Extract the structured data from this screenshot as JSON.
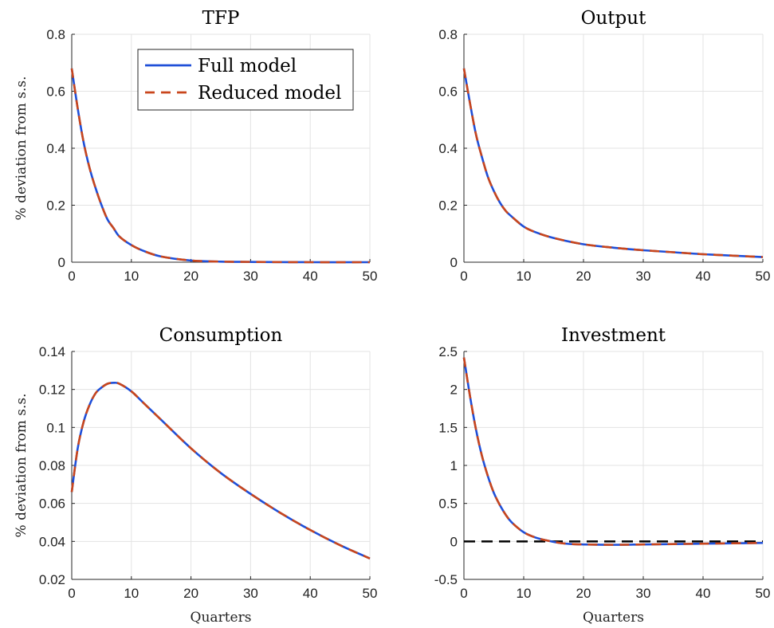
{
  "legend": {
    "items": [
      {
        "label": "Full model",
        "color": "#1f4fd8",
        "style": "solid"
      },
      {
        "label": "Reduced model",
        "color": "#c9461c",
        "style": "dashed"
      }
    ]
  },
  "colors": {
    "full": "#1f4fd8",
    "reduced": "#c9461c",
    "zero_line": "#000000"
  },
  "chart_data": [
    {
      "type": "line",
      "title": "TFP",
      "ylabel": "% deviation from s.s.",
      "xlabel": "",
      "xlim": [
        0,
        50
      ],
      "ylim": [
        0,
        0.8
      ],
      "xticks": [
        "0",
        "10",
        "20",
        "30",
        "40",
        "50"
      ],
      "yticks": [
        "0",
        "0.2",
        "0.4",
        "0.6",
        "0.8"
      ],
      "grid": true,
      "legend_position": "top-right",
      "x": [
        0,
        1,
        2,
        3,
        4,
        5,
        6,
        7,
        8,
        10,
        12,
        15,
        20,
        25,
        30,
        40,
        50
      ],
      "series": [
        {
          "name": "Full model",
          "values": [
            0.68,
            0.54,
            0.42,
            0.33,
            0.26,
            0.2,
            0.15,
            0.12,
            0.09,
            0.06,
            0.04,
            0.02,
            0.006,
            0.002,
            0.001,
            0.0,
            0.0
          ]
        },
        {
          "name": "Reduced model",
          "values": [
            0.68,
            0.54,
            0.42,
            0.33,
            0.26,
            0.2,
            0.15,
            0.12,
            0.09,
            0.06,
            0.04,
            0.02,
            0.006,
            0.002,
            0.001,
            0.0,
            0.0
          ]
        }
      ]
    },
    {
      "type": "line",
      "title": "Output",
      "ylabel": "",
      "xlabel": "",
      "xlim": [
        0,
        50
      ],
      "ylim": [
        0,
        0.8
      ],
      "xticks": [
        "0",
        "10",
        "20",
        "30",
        "40",
        "50"
      ],
      "yticks": [
        "0",
        "0.2",
        "0.4",
        "0.6",
        "0.8"
      ],
      "grid": true,
      "x": [
        0,
        1,
        2,
        3,
        4,
        5,
        6,
        7,
        8,
        10,
        12,
        15,
        20,
        25,
        30,
        35,
        40,
        45,
        50
      ],
      "series": [
        {
          "name": "Full model",
          "values": [
            0.68,
            0.56,
            0.45,
            0.37,
            0.3,
            0.25,
            0.21,
            0.18,
            0.16,
            0.125,
            0.105,
            0.085,
            0.063,
            0.051,
            0.042,
            0.035,
            0.028,
            0.023,
            0.018
          ]
        },
        {
          "name": "Reduced model",
          "values": [
            0.68,
            0.56,
            0.45,
            0.37,
            0.3,
            0.25,
            0.21,
            0.18,
            0.16,
            0.125,
            0.105,
            0.085,
            0.063,
            0.051,
            0.042,
            0.035,
            0.028,
            0.023,
            0.018
          ]
        }
      ]
    },
    {
      "type": "line",
      "title": "Consumption",
      "ylabel": "% deviation from s.s.",
      "xlabel": "Quarters",
      "xlim": [
        0,
        50
      ],
      "ylim": [
        0.02,
        0.14
      ],
      "xticks": [
        "0",
        "10",
        "20",
        "30",
        "40",
        "50"
      ],
      "yticks": [
        "0.02",
        "0.04",
        "0.06",
        "0.08",
        "0.1",
        "0.12",
        "0.14"
      ],
      "grid": true,
      "x": [
        0,
        1,
        2,
        3,
        4,
        5,
        6,
        7,
        8,
        10,
        12,
        15,
        20,
        25,
        30,
        35,
        40,
        45,
        50
      ],
      "series": [
        {
          "name": "Full model",
          "values": [
            0.066,
            0.089,
            0.103,
            0.112,
            0.118,
            0.121,
            0.123,
            0.1235,
            0.123,
            0.119,
            0.113,
            0.104,
            0.089,
            0.076,
            0.065,
            0.055,
            0.046,
            0.038,
            0.031
          ]
        },
        {
          "name": "Reduced model",
          "values": [
            0.066,
            0.089,
            0.103,
            0.112,
            0.118,
            0.121,
            0.123,
            0.1235,
            0.123,
            0.119,
            0.113,
            0.104,
            0.089,
            0.076,
            0.065,
            0.055,
            0.046,
            0.038,
            0.031
          ]
        }
      ]
    },
    {
      "type": "line",
      "title": "Investment",
      "ylabel": "",
      "xlabel": "Quarters",
      "xlim": [
        0,
        50
      ],
      "ylim": [
        -0.5,
        2.5
      ],
      "xticks": [
        "0",
        "10",
        "20",
        "30",
        "40",
        "50"
      ],
      "yticks": [
        "-0.5",
        "0",
        "0.5",
        "1",
        "1.5",
        "2",
        "2.5"
      ],
      "grid": true,
      "zero_line": 0,
      "x": [
        0,
        1,
        2,
        3,
        4,
        5,
        6,
        7,
        8,
        10,
        12,
        14,
        16,
        18,
        20,
        25,
        30,
        35,
        40,
        45,
        50
      ],
      "series": [
        {
          "name": "Full model",
          "values": [
            2.42,
            1.92,
            1.48,
            1.13,
            0.86,
            0.64,
            0.48,
            0.35,
            0.25,
            0.12,
            0.05,
            0.01,
            -0.02,
            -0.035,
            -0.04,
            -0.045,
            -0.04,
            -0.035,
            -0.03,
            -0.025,
            -0.02
          ]
        },
        {
          "name": "Reduced model",
          "values": [
            2.42,
            1.92,
            1.48,
            1.13,
            0.86,
            0.64,
            0.48,
            0.35,
            0.25,
            0.12,
            0.05,
            0.01,
            -0.02,
            -0.035,
            -0.04,
            -0.045,
            -0.04,
            -0.035,
            -0.03,
            -0.025,
            -0.02
          ]
        }
      ]
    }
  ]
}
